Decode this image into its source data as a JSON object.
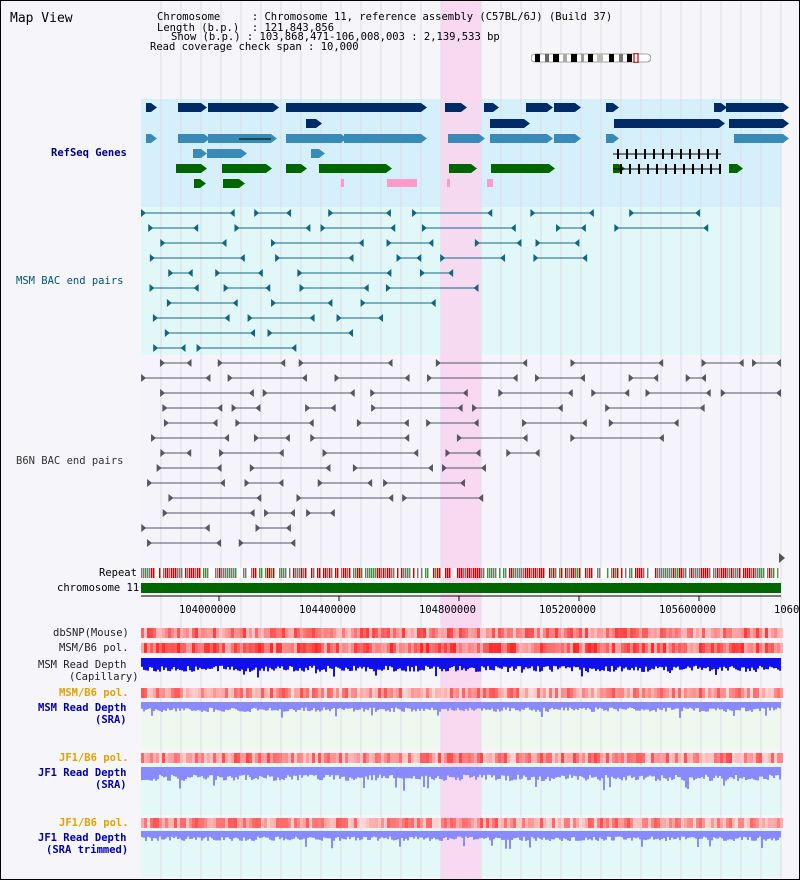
{
  "page": {
    "title": "Map View"
  },
  "info": {
    "chromosome_key": "Chromosome",
    "chromosome_val": "Chromosome 11, reference assembly (C57BL/6J) (Build 37)",
    "length_key": "Length (b.p.)",
    "length_val": "121,843,856",
    "show_key": "Show (b.p.)",
    "show_val": "103,868,471-106,008,003 : 2,139,533 bp",
    "span_key": "Read coverage check span",
    "span_val": "10,000"
  },
  "tracks": {
    "refseq": "RefSeq Genes",
    "msm_bac": "MSM BAC end pairs",
    "b6n_bac": "B6N BAC end pairs",
    "repeat": "Repeat",
    "chromosome": "chromosome 11",
    "dbsnp": "dbSNP(Mouse)",
    "msm_b6_pol_1": "MSM/B6 pol.",
    "msm_read_depth_cap_1": "MSM Read Depth",
    "msm_read_depth_cap_2": "(Capillary)",
    "msm_b6_pol_2": "MSM/B6 pol.",
    "msm_read_depth_sra_1": "MSM Read Depth",
    "msm_read_depth_sra_2": "(SRA)",
    "jf1_b6_pol_1": "JF1/B6 pol.",
    "jf1_read_depth_1": "JF1 Read Depth",
    "jf1_read_depth_2": "(SRA)",
    "jf1_b6_pol_2": "JF1/B6 pol.",
    "jf1_read_depth_tr_1": "JF1 Read Depth",
    "jf1_read_depth_tr_2": "(SRA trimmed)"
  },
  "axis": {
    "ticks": [
      "104000000",
      "104400000",
      "104800000",
      "105200000",
      "105600000",
      "1060"
    ]
  },
  "colors": {
    "gene_dark": "#002b66",
    "gene_mid": "#3a8ab8",
    "gene_green": "#006600",
    "highlight": "#f8d6f0",
    "refseq_bg": "#d6f0fb",
    "msm_bg": "#e2f8f8",
    "depth_blue": "#1010ee",
    "depth_light": "#8a8aff",
    "chrom_green": "#006600"
  },
  "icons": {
    "ideogram": "chromosome-ideogram"
  }
}
